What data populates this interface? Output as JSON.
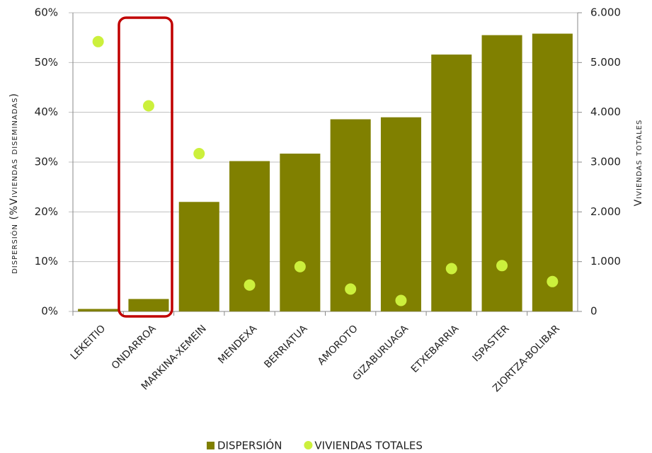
{
  "chart_data": {
    "type": "bar",
    "categories": [
      "LEKEITIO",
      "ONDARROA",
      "MARKINA-XEMEIN",
      "MENDEXA",
      "BERRIATUA",
      "AMOROTO",
      "GIZABURUAGA",
      "ETXEBARRIA",
      "ISPASTER",
      "ZIORTZA-BOLIBAR"
    ],
    "series": [
      {
        "name": "DISPERSIÓN",
        "color": "#808000",
        "type": "bar",
        "values": [
          0.5,
          2.5,
          22,
          30.2,
          31.7,
          38.6,
          39,
          51.6,
          55.5,
          55.8
        ]
      },
      {
        "name": "VIVIENDAS TOTALES",
        "color": "#ccf03c",
        "type": "scatter",
        "axis": "y2",
        "values": [
          5420,
          4130,
          3170,
          530,
          900,
          450,
          220,
          860,
          920,
          600
        ]
      }
    ],
    "ylabel": "dispersión (%Viviendas diseminadas)",
    "y2label": "Viviendas totales",
    "ylim": [
      0,
      60
    ],
    "yticks": [
      {
        "value": 0,
        "label": "0%"
      },
      {
        "value": 10,
        "label": "10%"
      },
      {
        "value": 20,
        "label": "20%"
      },
      {
        "value": 30,
        "label": "30%"
      },
      {
        "value": 40,
        "label": "40%"
      },
      {
        "value": 50,
        "label": "50%"
      },
      {
        "value": 60,
        "label": "60%"
      }
    ],
    "y2lim": [
      0,
      6000
    ],
    "y2ticks": [
      0,
      {
        "value": 1000,
        "label": "1.000"
      },
      {
        "value": 2000,
        "label": "2.000"
      },
      {
        "value": 3000,
        "label": "3.000"
      },
      {
        "value": 4000,
        "label": "4.000"
      },
      {
        "value": 5000,
        "label": "5.000"
      },
      {
        "value": 6000,
        "label": "6.000"
      }
    ],
    "grid": true,
    "legend": "bottom"
  }
}
